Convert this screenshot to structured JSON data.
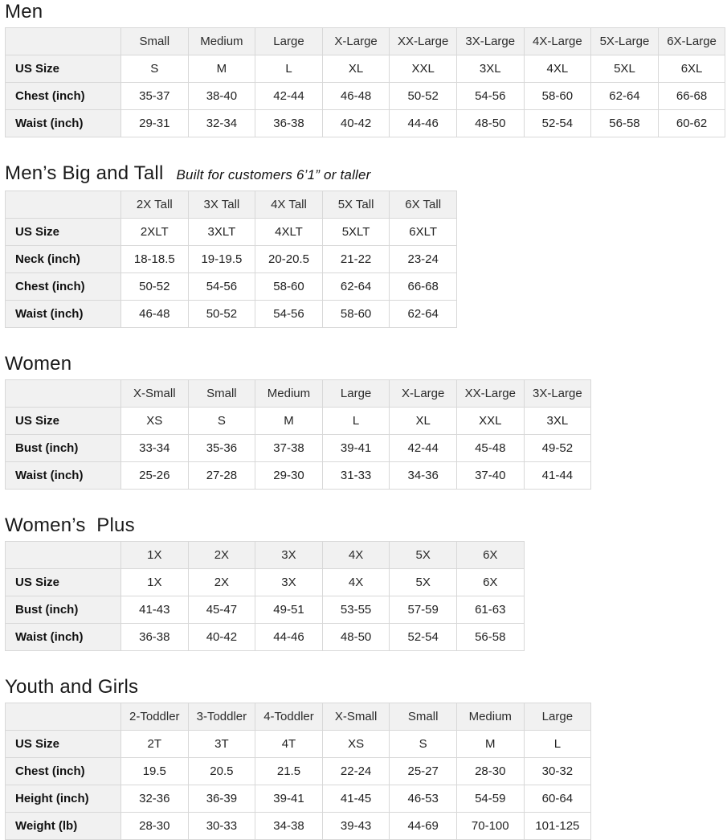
{
  "theme": {
    "background": "#ffffff",
    "table_border": "#d8d8d8",
    "header_bg": "#f1f1f1",
    "text": "#0f1111"
  },
  "sections": [
    {
      "title": "Men",
      "subtitle": "",
      "columns": [
        "Small",
        "Medium",
        "Large",
        "X-Large",
        "XX-Large",
        "3X-Large",
        "4X-Large",
        "5X-Large",
        "6X-Large"
      ],
      "rows": [
        {
          "label": "US Size",
          "values": [
            "S",
            "M",
            "L",
            "XL",
            "XXL",
            "3XL",
            "4XL",
            "5XL",
            "6XL"
          ]
        },
        {
          "label": "Chest (inch)",
          "values": [
            "35-37",
            "38-40",
            "42-44",
            "46-48",
            "50-52",
            "54-56",
            "58-60",
            "62-64",
            "66-68"
          ]
        },
        {
          "label": "Waist (inch)",
          "values": [
            "29-31",
            "32-34",
            "36-38",
            "40-42",
            "44-46",
            "48-50",
            "52-54",
            "56-58",
            "60-62"
          ]
        }
      ]
    },
    {
      "title": "Men’s Big and Tall",
      "subtitle": "Built for customers 6’1” or taller",
      "columns": [
        "2X Tall",
        "3X Tall",
        "4X Tall",
        "5X Tall",
        "6X Tall"
      ],
      "rows": [
        {
          "label": "US Size",
          "values": [
            "2XLT",
            "3XLT",
            "4XLT",
            "5XLT",
            "6XLT"
          ]
        },
        {
          "label": "Neck (inch)",
          "values": [
            "18-18.5",
            "19-19.5",
            "20-20.5",
            "21-22",
            "23-24"
          ]
        },
        {
          "label": "Chest (inch)",
          "values": [
            "50-52",
            "54-56",
            "58-60",
            "62-64",
            "66-68"
          ]
        },
        {
          "label": "Waist (inch)",
          "values": [
            "46-48",
            "50-52",
            "54-56",
            "58-60",
            "62-64"
          ]
        }
      ]
    },
    {
      "title": "Women",
      "subtitle": "",
      "columns": [
        "X-Small",
        "Small",
        "Medium",
        "Large",
        "X-Large",
        "XX-Large",
        "3X-Large"
      ],
      "rows": [
        {
          "label": "US Size",
          "values": [
            "XS",
            "S",
            "M",
            "L",
            "XL",
            "XXL",
            "3XL"
          ]
        },
        {
          "label": "Bust (inch)",
          "values": [
            "33-34",
            "35-36",
            "37-38",
            "39-41",
            "42-44",
            "45-48",
            "49-52"
          ]
        },
        {
          "label": "Waist (inch)",
          "values": [
            "25-26",
            "27-28",
            "29-30",
            "31-33",
            "34-36",
            "37-40",
            "41-44"
          ]
        }
      ]
    },
    {
      "title": "Women’s  Plus",
      "subtitle": "",
      "columns": [
        "1X",
        "2X",
        "3X",
        "4X",
        "5X",
        "6X"
      ],
      "rows": [
        {
          "label": "US Size",
          "values": [
            "1X",
            "2X",
            "3X",
            "4X",
            "5X",
            "6X"
          ]
        },
        {
          "label": "Bust (inch)",
          "values": [
            "41-43",
            "45-47",
            "49-51",
            "53-55",
            "57-59",
            "61-63"
          ]
        },
        {
          "label": "Waist (inch)",
          "values": [
            "36-38",
            "40-42",
            "44-46",
            "48-50",
            "52-54",
            "56-58"
          ]
        }
      ]
    },
    {
      "title": "Youth and Girls",
      "subtitle": "",
      "columns": [
        "2-Toddler",
        "3-Toddler",
        "4-Toddler",
        "X-Small",
        "Small",
        "Medium",
        "Large"
      ],
      "rows": [
        {
          "label": "US Size",
          "values": [
            "2T",
            "3T",
            "4T",
            "XS",
            "S",
            "M",
            "L"
          ]
        },
        {
          "label": "Chest (inch)",
          "values": [
            "19.5",
            "20.5",
            "21.5",
            "22-24",
            "25-27",
            "28-30",
            "30-32"
          ]
        },
        {
          "label": "Height (inch)",
          "values": [
            "32-36",
            "36-39",
            "39-41",
            "41-45",
            "46-53",
            "54-59",
            "60-64"
          ]
        },
        {
          "label": "Weight (lb)",
          "values": [
            "28-30",
            "30-33",
            "34-38",
            "39-43",
            "44-69",
            "70-100",
            "101-125"
          ]
        }
      ]
    }
  ]
}
